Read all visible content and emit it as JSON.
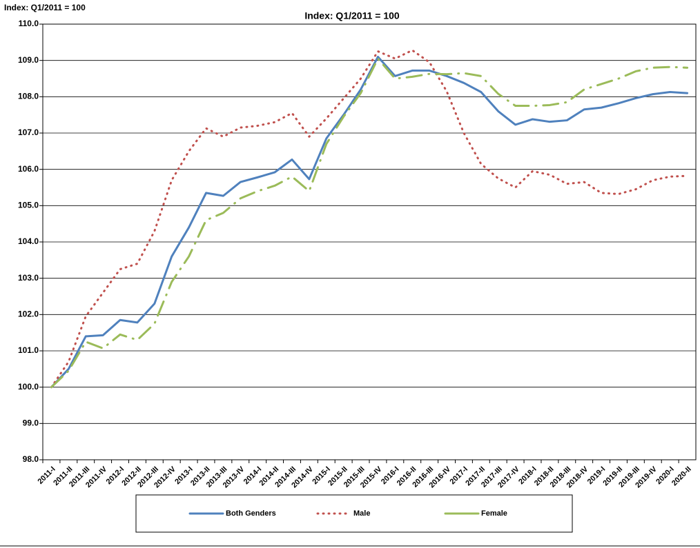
{
  "chart_data": {
    "type": "line",
    "subtitle": "Index: Q1/2011 = 100",
    "y_axis_label": "Index: Q1/2011 = 100",
    "categories": [
      "2011-I",
      "2011-II",
      "2011-III",
      "2011-IV",
      "2012-I",
      "2012-II",
      "2012-III",
      "2012-IV",
      "2013-I",
      "2013-II",
      "2013-III",
      "2013-IV",
      "2014-I",
      "2014-II",
      "2014-III",
      "2014-IV",
      "2015-I",
      "2015-II",
      "2015-III",
      "2015-IV",
      "2016-I",
      "2016-II",
      "2016-III",
      "2016-IV",
      "2017-I",
      "2017-II",
      "2017-III",
      "2017-IV",
      "2018-I",
      "2018-II",
      "2018-III",
      "2018-IV",
      "2019-I",
      "2019-II",
      "2019-III",
      "2019-IV",
      "2020-I",
      "2020-II"
    ],
    "series": [
      {
        "name": "Both Genders",
        "color": "#4f81bd",
        "style": "solid",
        "values": [
          100.0,
          100.5,
          101.4,
          101.43,
          101.85,
          101.78,
          102.3,
          103.6,
          104.4,
          105.35,
          105.27,
          105.65,
          105.78,
          105.92,
          106.27,
          105.73,
          106.85,
          107.5,
          108.2,
          109.1,
          108.57,
          108.72,
          108.72,
          108.57,
          108.38,
          108.13,
          107.6,
          107.23,
          107.38,
          107.31,
          107.35,
          107.65,
          107.7,
          107.82,
          107.96,
          108.07,
          108.13,
          108.1
        ]
      },
      {
        "name": "Male",
        "color": "#c0504d",
        "style": "dotted",
        "values": [
          100.0,
          100.7,
          101.95,
          102.6,
          103.25,
          103.4,
          104.3,
          105.7,
          106.5,
          107.13,
          106.9,
          107.15,
          107.2,
          107.3,
          107.55,
          106.9,
          107.4,
          107.95,
          108.5,
          109.25,
          109.05,
          109.28,
          108.95,
          108.15,
          107.0,
          106.15,
          105.75,
          105.5,
          105.95,
          105.85,
          105.6,
          105.65,
          105.35,
          105.32,
          105.45,
          105.7,
          105.8,
          105.82
        ]
      },
      {
        "name": "Female",
        "color": "#9bbb59",
        "style": "dashdot",
        "values": [
          100.0,
          100.45,
          101.25,
          101.07,
          101.45,
          101.3,
          101.75,
          102.9,
          103.6,
          104.6,
          104.8,
          105.2,
          105.4,
          105.55,
          105.8,
          105.4,
          106.7,
          107.45,
          108.1,
          109.05,
          108.5,
          108.55,
          108.63,
          108.62,
          108.65,
          108.57,
          108.08,
          107.75,
          107.75,
          107.77,
          107.85,
          108.2,
          108.35,
          108.5,
          108.7,
          108.8,
          108.82,
          108.8
        ]
      }
    ],
    "ylim": [
      98,
      110
    ],
    "yticks": [
      {
        "value": 98,
        "label": "98.0"
      },
      {
        "value": 99,
        "label": "99.0"
      },
      {
        "value": 100,
        "label": "100.0"
      },
      {
        "value": 101,
        "label": "101.0"
      },
      {
        "value": 102,
        "label": "102.0"
      },
      {
        "value": 103,
        "label": "103.0"
      },
      {
        "value": 104,
        "label": "104.0"
      },
      {
        "value": 105,
        "label": "105.0"
      },
      {
        "value": 106,
        "label": "106.0"
      },
      {
        "value": 107,
        "label": "107.0"
      },
      {
        "value": 108,
        "label": "108.0"
      },
      {
        "value": 109,
        "label": "109.0"
      },
      {
        "value": 110,
        "label": "110.0"
      }
    ],
    "grid": true,
    "legend": "bottom"
  }
}
